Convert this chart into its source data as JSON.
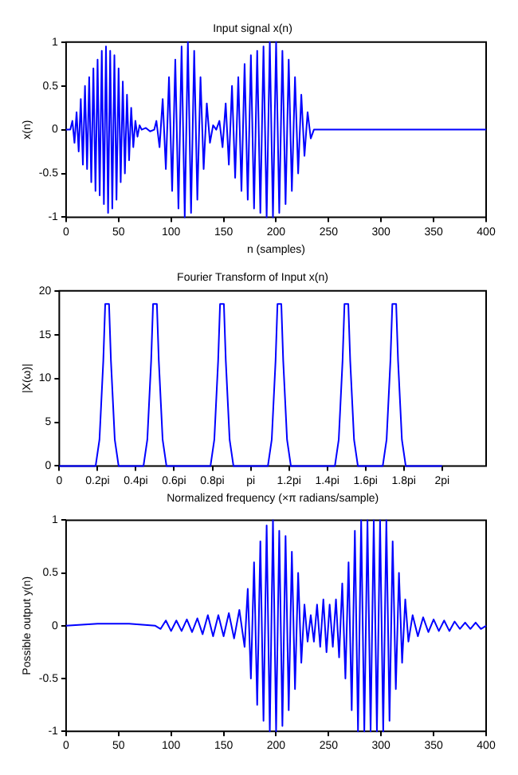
{
  "chart_data": [
    {
      "type": "line",
      "title": "Input signal x(n)",
      "xlabel": "n (samples)",
      "ylabel": "x(n)",
      "xlim": [
        0,
        400
      ],
      "xticks": [
        0,
        50,
        100,
        150,
        200,
        250,
        300,
        350,
        400
      ],
      "ylim": [
        -1,
        1
      ],
      "yticks": [
        -1,
        -0.5,
        0,
        0.5,
        1
      ],
      "grid": false,
      "legend": false,
      "marker": "none",
      "line_style": "solid",
      "series": [
        {
          "color": "#0000ff",
          "x": [
            0,
            4,
            6,
            8,
            10,
            12,
            14,
            16,
            18,
            20,
            22,
            24,
            26,
            28,
            30,
            32,
            34,
            36,
            38,
            40,
            42,
            44,
            46,
            48,
            50,
            52,
            54,
            56,
            58,
            60,
            62,
            64,
            66,
            68,
            70,
            72,
            76,
            80,
            84,
            86,
            89,
            92,
            95,
            98,
            101,
            104,
            107,
            110,
            113,
            116,
            119,
            122,
            125,
            128,
            131,
            134,
            137,
            140,
            143,
            146,
            149,
            152,
            155,
            158,
            161,
            164,
            167,
            170,
            173,
            176,
            179,
            182,
            185,
            188,
            191,
            194,
            197,
            200,
            203,
            206,
            209,
            212,
            215,
            218,
            221,
            224,
            227,
            230,
            233,
            236,
            400
          ],
          "values": [
            0,
            0,
            0.1,
            -0.15,
            0.2,
            -0.25,
            0.35,
            -0.4,
            0.5,
            -0.45,
            0.6,
            -0.6,
            0.7,
            -0.7,
            0.8,
            -0.75,
            0.9,
            -0.85,
            0.95,
            -0.95,
            0.9,
            -0.9,
            0.85,
            -0.8,
            0.7,
            -0.6,
            0.55,
            -0.5,
            0.4,
            -0.35,
            0.25,
            -0.2,
            0.1,
            -0.08,
            0.05,
            0,
            0.02,
            -0.02,
            0,
            0.1,
            -0.2,
            0.35,
            -0.45,
            0.6,
            -0.7,
            0.8,
            -0.9,
            0.95,
            -1,
            1,
            -0.95,
            0.9,
            -0.8,
            0.6,
            -0.45,
            0.3,
            -0.15,
            0.05,
            0,
            0.1,
            -0.2,
            0.3,
            -0.4,
            0.5,
            -0.55,
            0.6,
            -0.7,
            0.75,
            -0.8,
            0.85,
            -0.9,
            0.9,
            -0.95,
            0.95,
            -1,
            1,
            -1,
            1,
            -0.95,
            0.9,
            -0.85,
            0.8,
            -0.7,
            0.6,
            -0.5,
            0.4,
            -0.3,
            0.2,
            -0.1,
            0,
            0
          ]
        }
      ]
    },
    {
      "type": "line",
      "title": "Fourier Transform of Input x(n)",
      "xlabel": "Normalized frequency (×π radians/sample)",
      "ylabel": "|X(ω)|",
      "xlim": [
        0,
        2.23
      ],
      "xticks": [
        0,
        {
          "value": 0.2,
          "label": "0.2pi"
        },
        {
          "value": 0.4,
          "label": "0.4pi"
        },
        {
          "value": 0.6,
          "label": "0.6pi"
        },
        {
          "value": 0.8,
          "label": "0.8pi"
        },
        {
          "value": 1,
          "label": "pi"
        },
        {
          "value": 1.2,
          "label": "1.2pi"
        },
        {
          "value": 1.4,
          "label": "1.4pi"
        },
        {
          "value": 1.6,
          "label": "1.6pi"
        },
        {
          "value": 1.8,
          "label": "1.8pi"
        },
        {
          "value": 2,
          "label": "2pi"
        }
      ],
      "ylim": [
        0,
        20
      ],
      "yticks": [
        0,
        5,
        10,
        15,
        20
      ],
      "grid": false,
      "legend": false,
      "marker": "none",
      "line_style": "solid",
      "series": [
        {
          "color": "#0000ff",
          "x": [
            0,
            0.19,
            0.21,
            0.23,
            0.24,
            0.26,
            0.27,
            0.29,
            0.31,
            0.44,
            0.46,
            0.48,
            0.49,
            0.51,
            0.52,
            0.54,
            0.56,
            0.79,
            0.81,
            0.83,
            0.84,
            0.86,
            0.87,
            0.89,
            0.91,
            1.09,
            1.11,
            1.13,
            1.14,
            1.16,
            1.17,
            1.19,
            1.21,
            1.44,
            1.46,
            1.48,
            1.49,
            1.51,
            1.52,
            1.54,
            1.56,
            1.69,
            1.71,
            1.73,
            1.74,
            1.76,
            1.77,
            1.79,
            1.81,
            2
          ],
          "values": [
            0,
            0,
            3,
            12,
            18.5,
            18.5,
            12,
            3,
            0,
            0,
            3,
            12,
            18.5,
            18.5,
            12,
            3,
            0,
            0,
            3,
            12,
            18.5,
            18.5,
            12,
            3,
            0,
            0,
            3,
            12,
            18.5,
            18.5,
            12,
            3,
            0,
            0,
            3,
            12,
            18.5,
            18.5,
            12,
            3,
            0,
            0,
            3,
            12,
            18.5,
            18.5,
            12,
            3,
            0,
            0
          ]
        }
      ]
    },
    {
      "type": "line",
      "ylabel": "Possible output y(n)",
      "xlim": [
        0,
        400
      ],
      "xticks": [
        0,
        50,
        100,
        150,
        200,
        250,
        300,
        350,
        400
      ],
      "ylim": [
        -1,
        1
      ],
      "yticks": [
        -1,
        -0.5,
        0,
        0.5,
        1
      ],
      "grid": false,
      "legend": false,
      "marker": "none",
      "line_style": "solid",
      "series": [
        {
          "color": "#0000ff",
          "x": [
            0,
            30,
            60,
            85,
            90,
            95,
            100,
            105,
            110,
            115,
            120,
            125,
            130,
            135,
            140,
            145,
            150,
            155,
            160,
            165,
            170,
            173,
            176,
            179,
            182,
            185,
            188,
            191,
            194,
            197,
            200,
            203,
            206,
            209,
            212,
            215,
            218,
            221,
            224,
            227,
            230,
            233,
            236,
            239,
            242,
            245,
            248,
            251,
            254,
            257,
            260,
            263,
            266,
            269,
            272,
            275,
            278,
            281,
            284,
            287,
            290,
            293,
            296,
            299,
            302,
            305,
            308,
            311,
            314,
            317,
            320,
            323,
            326,
            330,
            335,
            340,
            345,
            350,
            355,
            360,
            365,
            370,
            375,
            380,
            385,
            390,
            395,
            400
          ],
          "values": [
            0,
            0.02,
            0.02,
            0,
            -0.03,
            0.05,
            -0.05,
            0.05,
            -0.05,
            0.06,
            -0.06,
            0.07,
            -0.08,
            0.1,
            -0.1,
            0.1,
            -0.1,
            0.12,
            -0.12,
            0.15,
            -0.2,
            0.35,
            -0.5,
            0.6,
            -0.75,
            0.8,
            -0.9,
            0.95,
            -1,
            1,
            -1,
            0.9,
            -0.95,
            0.85,
            -0.8,
            0.7,
            -0.6,
            0.5,
            -0.35,
            0.2,
            -0.15,
            0.1,
            -0.15,
            0.2,
            -0.2,
            0.25,
            -0.25,
            0.2,
            -0.2,
            0.25,
            -0.3,
            0.4,
            -0.5,
            0.6,
            -0.8,
            0.9,
            -1,
            1,
            -1,
            1,
            -1,
            1,
            -1,
            1,
            -1,
            1,
            -0.9,
            0.8,
            -0.6,
            0.5,
            -0.35,
            0.25,
            -0.15,
            0.1,
            -0.1,
            0.08,
            -0.06,
            0.06,
            -0.05,
            0.05,
            -0.05,
            0.04,
            -0.03,
            0.03,
            -0.03,
            0.03,
            -0.03,
            0
          ]
        }
      ]
    }
  ]
}
